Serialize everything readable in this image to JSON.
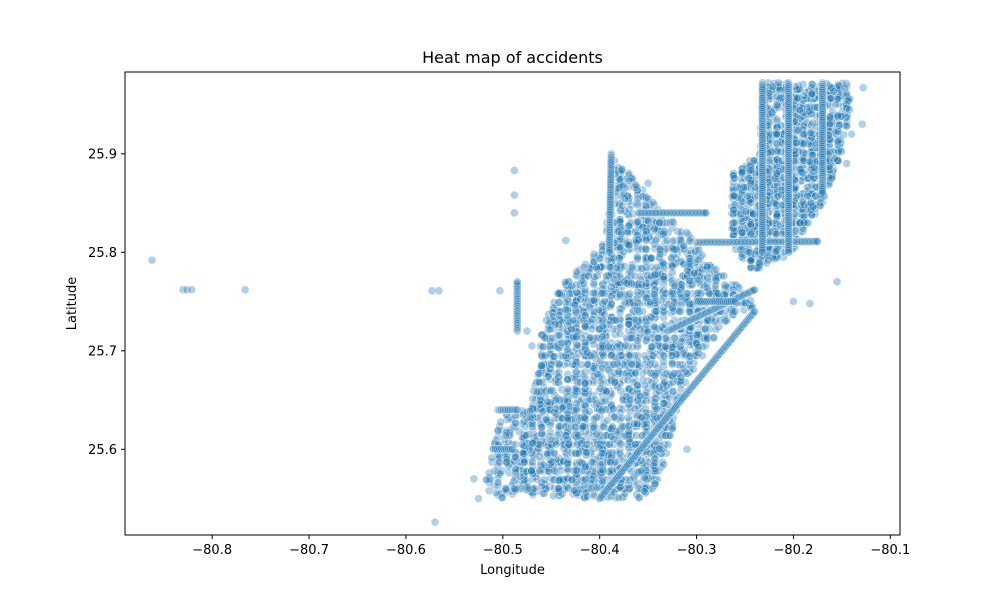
{
  "chart_data": {
    "type": "scatter",
    "title": "Heat map of accidents",
    "xlabel": "Longitude",
    "ylabel": "Latitude",
    "xlim": [
      -80.89,
      -80.09
    ],
    "ylim": [
      25.513,
      25.983
    ],
    "xticks": [
      -80.8,
      -80.7,
      -80.6,
      -80.5,
      -80.4,
      -80.3,
      -80.2,
      -80.1
    ],
    "xtick_labels": [
      "−80.8",
      "−80.7",
      "−80.6",
      "−80.5",
      "−80.4",
      "−80.3",
      "−80.2",
      "−80.1"
    ],
    "yticks": [
      25.6,
      25.7,
      25.8,
      25.9
    ],
    "ytick_labels": [
      "25.6",
      "25.7",
      "25.8",
      "25.9"
    ],
    "grid": false,
    "marker_color": "#1f77b4",
    "marker_edge_color": "#ffffff",
    "marker_alpha": 0.35,
    "points_outlying": [
      [
        -80.862,
        25.792
      ],
      [
        -80.83,
        25.762
      ],
      [
        -80.826,
        25.762
      ],
      [
        -80.821,
        25.762
      ],
      [
        -80.766,
        25.762
      ],
      [
        -80.573,
        25.761
      ],
      [
        -80.566,
        25.761
      ],
      [
        -80.57,
        25.526
      ],
      [
        -80.488,
        25.883
      ],
      [
        -80.488,
        25.858
      ],
      [
        -80.488,
        25.84
      ],
      [
        -80.435,
        25.812
      ],
      [
        -80.503,
        25.761
      ],
      [
        -80.475,
        25.72
      ],
      [
        -80.47,
        25.705
      ],
      [
        -80.45,
        25.66
      ],
      [
        -80.525,
        25.55
      ],
      [
        -80.53,
        25.57
      ],
      [
        -80.455,
        25.63
      ],
      [
        -80.433,
        25.61
      ],
      [
        -80.31,
        25.6
      ],
      [
        -80.27,
        25.73
      ],
      [
        -80.31,
        25.82
      ],
      [
        -80.2,
        25.75
      ],
      [
        -80.183,
        25.748
      ],
      [
        -80.155,
        25.77
      ],
      [
        -80.14,
        25.92
      ],
      [
        -80.128,
        25.967
      ],
      [
        -80.129,
        25.93
      ],
      [
        -80.145,
        25.89
      ],
      [
        -80.182,
        25.85
      ],
      [
        -80.35,
        25.87
      ]
    ],
    "dense_regions": [
      {
        "name": "main-city-polygon",
        "polygon": [
          [
            -80.388,
            25.9
          ],
          [
            -80.36,
            25.87
          ],
          [
            -80.335,
            25.84
          ],
          [
            -80.31,
            25.82
          ],
          [
            -80.285,
            25.79
          ],
          [
            -80.265,
            25.77
          ],
          [
            -80.245,
            25.76
          ],
          [
            -80.24,
            25.745
          ],
          [
            -80.27,
            25.73
          ],
          [
            -80.29,
            25.7
          ],
          [
            -80.31,
            25.67
          ],
          [
            -80.32,
            25.64
          ],
          [
            -80.33,
            25.6
          ],
          [
            -80.34,
            25.56
          ],
          [
            -80.36,
            25.55
          ],
          [
            -80.4,
            25.55
          ],
          [
            -80.44,
            25.552
          ],
          [
            -80.47,
            25.552
          ],
          [
            -80.485,
            25.57
          ],
          [
            -80.48,
            25.61
          ],
          [
            -80.47,
            25.65
          ],
          [
            -80.465,
            25.69
          ],
          [
            -80.46,
            25.72
          ],
          [
            -80.445,
            25.76
          ],
          [
            -80.415,
            25.79
          ],
          [
            -80.395,
            25.81
          ],
          [
            -80.39,
            25.85
          ]
        ],
        "count": 2600
      },
      {
        "name": "north-east-block",
        "polygon": [
          [
            -80.232,
            25.972
          ],
          [
            -80.145,
            25.972
          ],
          [
            -80.14,
            25.95
          ],
          [
            -80.15,
            25.9
          ],
          [
            -80.17,
            25.85
          ],
          [
            -80.19,
            25.82
          ],
          [
            -80.2,
            25.8
          ],
          [
            -80.22,
            25.79
          ],
          [
            -80.24,
            25.78
          ],
          [
            -80.26,
            25.8
          ],
          [
            -80.265,
            25.83
          ],
          [
            -80.262,
            25.88
          ],
          [
            -80.25,
            25.89
          ],
          [
            -80.235,
            25.9
          ]
        ],
        "count": 1400
      },
      {
        "name": "south-west-strip",
        "polygon": [
          [
            -80.5,
            25.64
          ],
          [
            -80.47,
            25.64
          ],
          [
            -80.46,
            25.6
          ],
          [
            -80.47,
            25.56
          ],
          [
            -80.5,
            25.55
          ],
          [
            -80.52,
            25.56
          ],
          [
            -80.51,
            25.6
          ]
        ],
        "count": 160
      }
    ],
    "dense_lines": [
      {
        "from": [
          -80.4,
          25.55
        ],
        "to": [
          -80.24,
          25.74
        ],
        "count": 140
      },
      {
        "from": [
          -80.33,
          25.72
        ],
        "to": [
          -80.24,
          25.762
        ],
        "count": 70
      },
      {
        "from": [
          -80.3,
          25.81
        ],
        "to": [
          -80.175,
          25.811
        ],
        "count": 90
      },
      {
        "from": [
          -80.36,
          25.84
        ],
        "to": [
          -80.29,
          25.84
        ],
        "count": 50
      },
      {
        "from": [
          -80.232,
          25.972
        ],
        "to": [
          -80.232,
          25.8
        ],
        "count": 90
      },
      {
        "from": [
          -80.205,
          25.972
        ],
        "to": [
          -80.205,
          25.8
        ],
        "count": 90
      },
      {
        "from": [
          -80.17,
          25.972
        ],
        "to": [
          -80.17,
          25.86
        ],
        "count": 60
      },
      {
        "from": [
          -80.485,
          25.72
        ],
        "to": [
          -80.485,
          25.77
        ],
        "count": 30
      },
      {
        "from": [
          -80.505,
          25.64
        ],
        "to": [
          -80.485,
          25.64
        ],
        "count": 12
      },
      {
        "from": [
          -80.51,
          25.6
        ],
        "to": [
          -80.49,
          25.6
        ],
        "count": 10
      },
      {
        "from": [
          -80.388,
          25.9
        ],
        "to": [
          -80.39,
          25.8
        ],
        "count": 60
      },
      {
        "from": [
          -80.3,
          25.75
        ],
        "to": [
          -80.26,
          25.75
        ],
        "count": 20
      }
    ]
  }
}
